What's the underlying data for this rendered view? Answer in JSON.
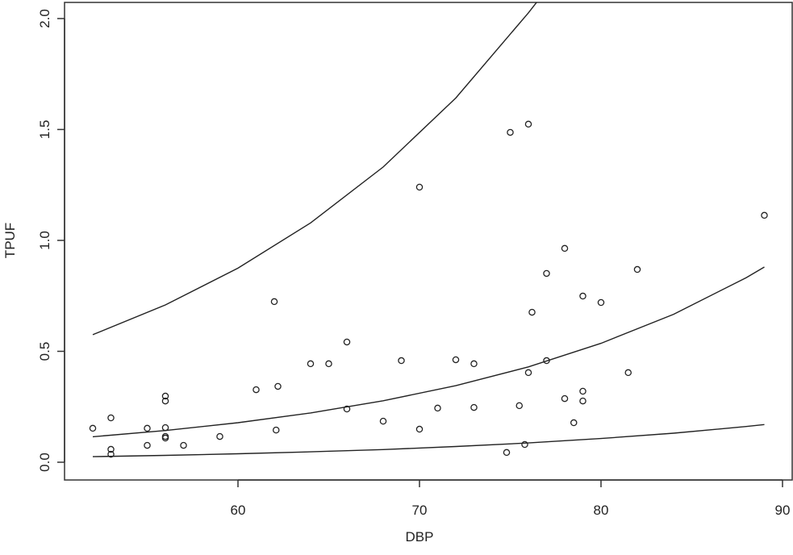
{
  "chart_data": {
    "type": "scatter",
    "title": "",
    "xlabel": "DBP",
    "ylabel": "TPUF",
    "xlim": [
      50,
      90.5
    ],
    "ylim": [
      -0.08,
      2.06
    ],
    "x_ticks": [
      60,
      70,
      80,
      90
    ],
    "y_ticks": [
      0.0,
      0.5,
      1.0,
      1.5,
      2.0
    ],
    "x_tick_labels": [
      "60",
      "70",
      "80",
      "90"
    ],
    "y_tick_labels": [
      "0.0",
      "0.5",
      "1.0",
      "1.5",
      "2.0"
    ],
    "grid": false,
    "marker": "open-circle",
    "colors": {
      "points": "#222222",
      "lines": "#222222",
      "axes": "#333333"
    },
    "points": [
      [
        52,
        0.153
      ],
      [
        53,
        0.2
      ],
      [
        53,
        0.058
      ],
      [
        53,
        0.036
      ],
      [
        55,
        0.153
      ],
      [
        55,
        0.076
      ],
      [
        56,
        0.298
      ],
      [
        56,
        0.276
      ],
      [
        56,
        0.156
      ],
      [
        56,
        0.116
      ],
      [
        56,
        0.109
      ],
      [
        57,
        0.076
      ],
      [
        59,
        0.116
      ],
      [
        61,
        0.327
      ],
      [
        62,
        0.724
      ],
      [
        62.1,
        0.145
      ],
      [
        62.2,
        0.342
      ],
      [
        64,
        0.444
      ],
      [
        65,
        0.444
      ],
      [
        66,
        0.542
      ],
      [
        66,
        0.24
      ],
      [
        68,
        0.185
      ],
      [
        69,
        0.458
      ],
      [
        70,
        1.24
      ],
      [
        70,
        0.149
      ],
      [
        71,
        0.244
      ],
      [
        72,
        0.462
      ],
      [
        73,
        0.444
      ],
      [
        73,
        0.247
      ],
      [
        74.8,
        0.044
      ],
      [
        75,
        1.487
      ],
      [
        75.5,
        0.255
      ],
      [
        75.8,
        0.08
      ],
      [
        76,
        1.524
      ],
      [
        76,
        0.404
      ],
      [
        76.2,
        0.676
      ],
      [
        77,
        0.851
      ],
      [
        77,
        0.458
      ],
      [
        78,
        0.964
      ],
      [
        78,
        0.287
      ],
      [
        78.5,
        0.178
      ],
      [
        79,
        0.749
      ],
      [
        79,
        0.32
      ],
      [
        79,
        0.276
      ],
      [
        80,
        0.72
      ],
      [
        81.5,
        0.404
      ],
      [
        82,
        0.869
      ],
      [
        89,
        1.113
      ]
    ],
    "curves": [
      {
        "x": [
          52,
          56,
          60,
          64,
          68,
          72,
          76,
          77
        ],
        "y": [
          0.575,
          0.709,
          0.875,
          1.079,
          1.331,
          1.642,
          2.026,
          2.13
        ]
      },
      {
        "x": [
          52,
          56,
          60,
          64,
          68,
          72,
          76,
          80,
          84,
          88,
          89
        ],
        "y": [
          0.115,
          0.143,
          0.178,
          0.222,
          0.277,
          0.345,
          0.43,
          0.536,
          0.667,
          0.832,
          0.88
        ]
      },
      {
        "x": [
          52,
          56,
          60,
          64,
          68,
          72,
          76,
          80,
          84,
          88,
          89
        ],
        "y": [
          0.025,
          0.031,
          0.038,
          0.047,
          0.057,
          0.071,
          0.087,
          0.107,
          0.131,
          0.161,
          0.17
        ]
      }
    ]
  }
}
